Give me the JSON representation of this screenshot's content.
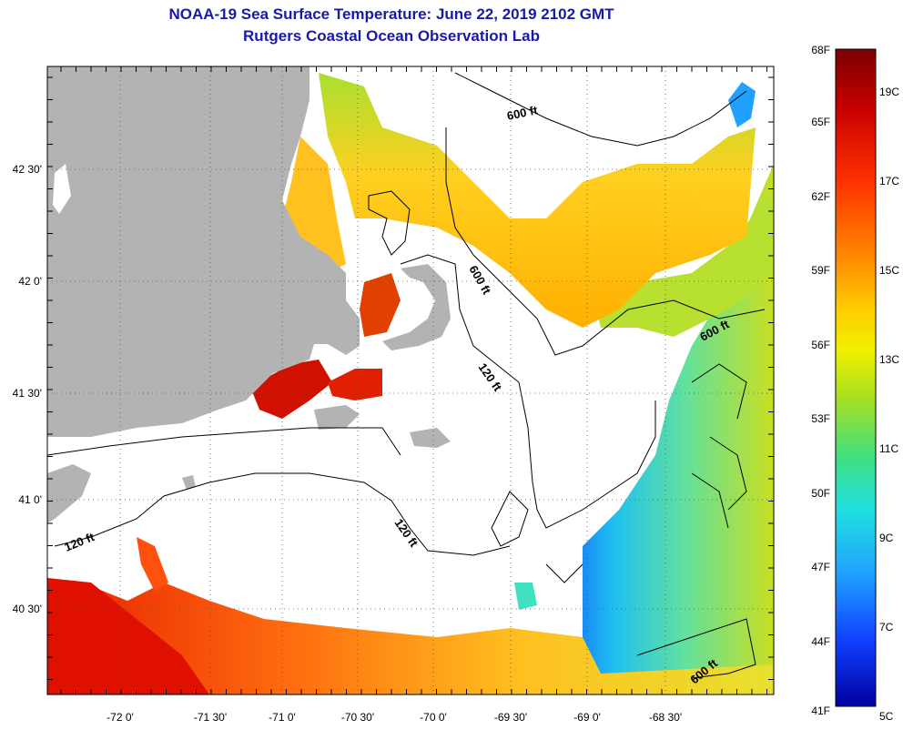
{
  "title": "NOAA-19 Sea Surface Temperature:  June 22, 2019 2102 GMT",
  "subtitle": "Rutgers Coastal Ocean Observation Lab",
  "map": {
    "lon_labels": [
      "-72 0'",
      "-71 30'",
      "-71 0'",
      "-70 30'",
      "-70 0'",
      "-69 30'",
      "-69 0'",
      "-68 30'"
    ],
    "lat_labels": [
      "42 30'",
      "42 0'",
      "41 30'",
      "41 0'",
      "40 30'"
    ],
    "contour_labels": [
      "600 ft",
      "600 ft",
      "600 ft",
      "600 ft",
      "120 ft",
      "120 ft",
      "120 ft"
    ],
    "colors": {
      "land": "#b3b3b3",
      "cloud": "#ffffff",
      "contour": "#000000"
    }
  },
  "colorbar": {
    "f_labels": [
      "68F",
      "65F",
      "62F",
      "59F",
      "56F",
      "53F",
      "50F",
      "47F",
      "44F",
      "41F"
    ],
    "c_labels": [
      "19C",
      "17C",
      "15C",
      "13C",
      "11C",
      "9C",
      "7C",
      "5C"
    ],
    "stops": [
      "#7a0000",
      "#c80000",
      "#ff3000",
      "#ff8c00",
      "#ffd000",
      "#f0f000",
      "#a8e020",
      "#40e080",
      "#20e0e0",
      "#20a0ff",
      "#1040ff",
      "#0000a0"
    ]
  }
}
